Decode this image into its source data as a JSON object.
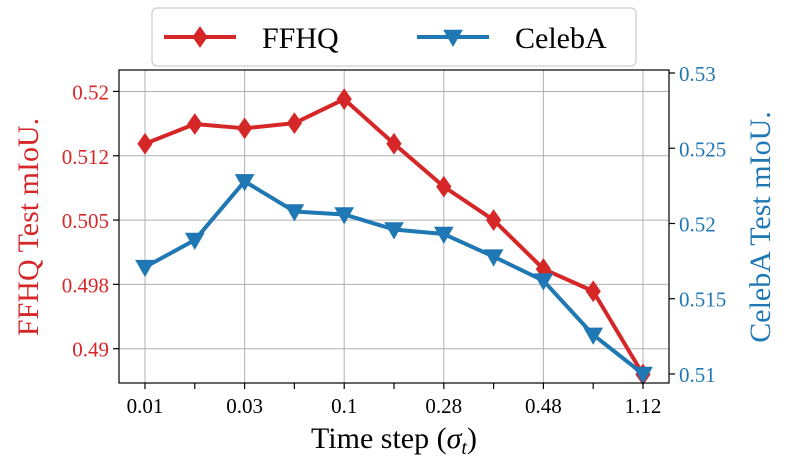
{
  "colors": {
    "ffhq": "#d62728",
    "celeba": "#1f77b4",
    "grid": "#b0b0b0",
    "axis": "#000000"
  },
  "chart_data": {
    "type": "line",
    "x": [
      0,
      1,
      2,
      3,
      4,
      5,
      6,
      7,
      8,
      9,
      10
    ],
    "xtick_labels": [
      "0.01",
      "",
      "0.03",
      "",
      "0.1",
      "",
      "0.28",
      "",
      "0.48",
      "",
      "1.12"
    ],
    "xtick_positions": [
      0,
      2,
      4,
      6,
      8,
      10
    ],
    "xlabel": "Time step (σ_t)",
    "xlabel_parts": {
      "text": "Time step (",
      "symbol": "σ",
      "subscript": "t",
      "close": ")"
    },
    "left_axis": {
      "ylabel": "FFHQ Test mIoU.",
      "ylim": [
        0.486,
        0.5225
      ],
      "ticks": [
        0.49,
        0.4975,
        0.505,
        0.5125,
        0.52
      ],
      "tick_labels": [
        "0.49",
        "0.498",
        "0.505",
        "0.512",
        "0.52"
      ]
    },
    "right_axis": {
      "ylabel": "CelebA Test mIoU.",
      "ylim": [
        0.5094,
        0.5302
      ],
      "ticks": [
        0.51,
        0.515,
        0.52,
        0.525,
        0.53
      ],
      "tick_labels": [
        "0.51",
        "0.515",
        "0.52",
        "0.525",
        "0.53"
      ]
    },
    "series": [
      {
        "name": "FFHQ",
        "axis": "left",
        "marker": "diamond",
        "values": [
          0.5139,
          0.5162,
          0.5157,
          0.5163,
          0.5191,
          0.5139,
          0.5089,
          0.505,
          0.4993,
          0.4967,
          0.487
        ]
      },
      {
        "name": "CelebA",
        "axis": "right",
        "marker": "triangle-down",
        "values": [
          0.5171,
          0.5189,
          0.5228,
          0.5208,
          0.5206,
          0.5196,
          0.5193,
          0.5178,
          0.5162,
          0.5126,
          0.51
        ]
      }
    ],
    "grid": true,
    "legend": {
      "position": "top-center",
      "entries": [
        "FFHQ",
        "CelebA"
      ]
    }
  }
}
